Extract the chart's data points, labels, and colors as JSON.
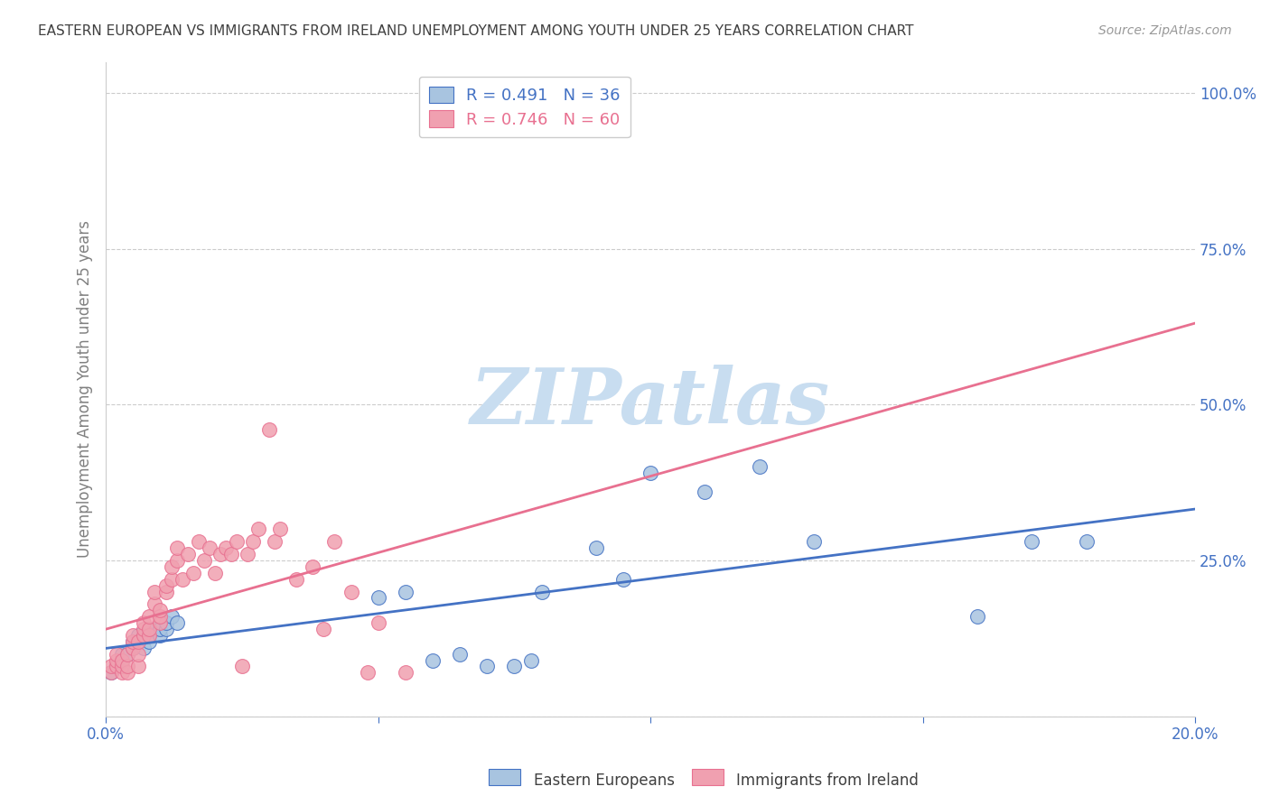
{
  "title": "EASTERN EUROPEAN VS IMMIGRANTS FROM IRELAND UNEMPLOYMENT AMONG YOUTH UNDER 25 YEARS CORRELATION CHART",
  "source": "Source: ZipAtlas.com",
  "xlabel": "",
  "ylabel": "Unemployment Among Youth under 25 years",
  "xlim": [
    0.0,
    0.2
  ],
  "ylim": [
    0.0,
    1.05
  ],
  "xticks": [
    0.0,
    0.05,
    0.1,
    0.15,
    0.2
  ],
  "xticklabels": [
    "0.0%",
    "",
    "",
    "",
    "20.0%"
  ],
  "yticks_right": [
    0.0,
    0.25,
    0.5,
    0.75,
    1.0
  ],
  "yticklabels_right": [
    "",
    "25.0%",
    "50.0%",
    "75.0%",
    "100.0%"
  ],
  "legend1_label": "R = 0.491   N = 36",
  "legend2_label": "R = 0.746   N = 60",
  "legend1_color": "#a8c4e0",
  "legend2_color": "#f0a0b0",
  "line1_color": "#4472c4",
  "line2_color": "#e87090",
  "dot1_color": "#a8c4e0",
  "dot2_color": "#f0a0b0",
  "watermark": "ZIPatlas",
  "watermark_color": "#c8ddf0",
  "background_color": "#ffffff",
  "grid_color": "#cccccc",
  "title_color": "#404040",
  "axis_label_color": "#808080",
  "right_tick_color": "#4472c4",
  "R1": 0.491,
  "N1": 36,
  "R2": 0.746,
  "N2": 60,
  "blue_dots_x": [
    0.001,
    0.002,
    0.003,
    0.003,
    0.004,
    0.005,
    0.005,
    0.006,
    0.006,
    0.007,
    0.008,
    0.008,
    0.009,
    0.01,
    0.01,
    0.011,
    0.011,
    0.012,
    0.013,
    0.05,
    0.055,
    0.06,
    0.065,
    0.07,
    0.075,
    0.078,
    0.08,
    0.09,
    0.095,
    0.1,
    0.11,
    0.12,
    0.13,
    0.16,
    0.17,
    0.18
  ],
  "blue_dots_y": [
    0.07,
    0.08,
    0.09,
    0.1,
    0.1,
    0.11,
    0.12,
    0.13,
    0.12,
    0.11,
    0.13,
    0.12,
    0.14,
    0.13,
    0.14,
    0.14,
    0.15,
    0.16,
    0.15,
    0.19,
    0.2,
    0.09,
    0.1,
    0.08,
    0.08,
    0.09,
    0.2,
    0.27,
    0.22,
    0.39,
    0.36,
    0.4,
    0.28,
    0.16,
    0.28,
    0.28
  ],
  "pink_dots_x": [
    0.001,
    0.001,
    0.002,
    0.002,
    0.002,
    0.003,
    0.003,
    0.003,
    0.004,
    0.004,
    0.004,
    0.005,
    0.005,
    0.005,
    0.006,
    0.006,
    0.006,
    0.007,
    0.007,
    0.007,
    0.008,
    0.008,
    0.008,
    0.009,
    0.009,
    0.01,
    0.01,
    0.01,
    0.011,
    0.011,
    0.012,
    0.012,
    0.013,
    0.013,
    0.014,
    0.015,
    0.016,
    0.017,
    0.018,
    0.019,
    0.02,
    0.021,
    0.022,
    0.023,
    0.024,
    0.025,
    0.026,
    0.027,
    0.028,
    0.03,
    0.031,
    0.032,
    0.035,
    0.038,
    0.04,
    0.042,
    0.045,
    0.048,
    0.05,
    0.055
  ],
  "pink_dots_y": [
    0.07,
    0.08,
    0.08,
    0.09,
    0.1,
    0.07,
    0.08,
    0.09,
    0.07,
    0.08,
    0.1,
    0.11,
    0.12,
    0.13,
    0.08,
    0.1,
    0.12,
    0.13,
    0.14,
    0.15,
    0.13,
    0.14,
    0.16,
    0.18,
    0.2,
    0.15,
    0.16,
    0.17,
    0.2,
    0.21,
    0.22,
    0.24,
    0.25,
    0.27,
    0.22,
    0.26,
    0.23,
    0.28,
    0.25,
    0.27,
    0.23,
    0.26,
    0.27,
    0.26,
    0.28,
    0.08,
    0.26,
    0.28,
    0.3,
    0.46,
    0.28,
    0.3,
    0.22,
    0.24,
    0.14,
    0.28,
    0.2,
    0.07,
    0.15,
    0.07
  ],
  "bottom_legend_labels": [
    "Eastern Europeans",
    "Immigrants from Ireland"
  ],
  "tick_color": "#4472c4"
}
